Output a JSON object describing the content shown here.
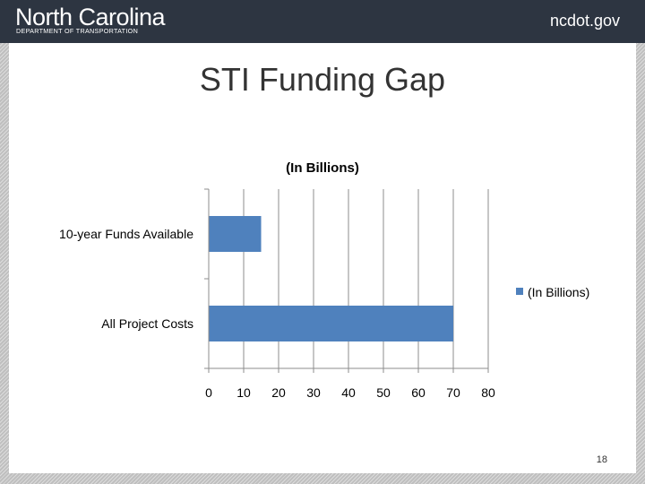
{
  "header": {
    "brand_name": "North Carolina",
    "brand_subtitle": "DEPARTMENT OF TRANSPORTATION",
    "site": "ncdot.gov"
  },
  "slide": {
    "title": "STI Funding Gap",
    "page_number": "18"
  },
  "chart_data": {
    "type": "bar",
    "orientation": "horizontal",
    "title": "(In Billions)",
    "categories": [
      "10-year Funds Available",
      "All Project Costs"
    ],
    "series": [
      {
        "name": "(In Billions)",
        "values": [
          15,
          70
        ],
        "color": "#4f81bd"
      }
    ],
    "xlim": [
      0,
      80
    ],
    "xticks": [
      0,
      10,
      20,
      30,
      40,
      50,
      60,
      70,
      80
    ],
    "grid": true,
    "legend_position": "right"
  }
}
